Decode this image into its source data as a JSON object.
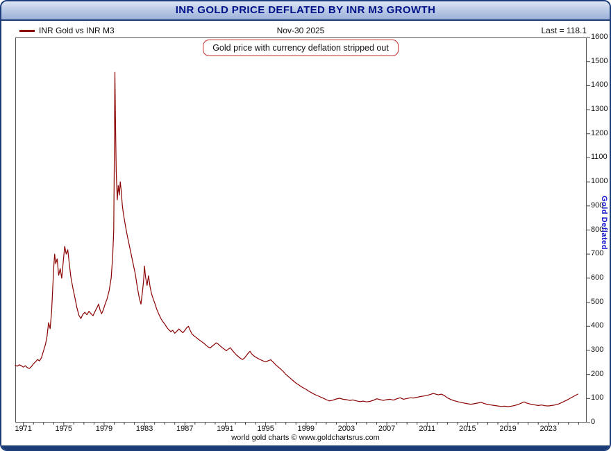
{
  "header": {
    "title": "INR GOLD PRICE DEFLATED BY INR M3 GROWTH",
    "date_label": "Nov-30 2025",
    "last_label": "Last = 118.1"
  },
  "annotation": {
    "text": "Gold price with currency deflation stripped out"
  },
  "footer": {
    "credit": "world gold charts © www.goldchartsrus.com"
  },
  "colors": {
    "line": "#8b0000",
    "title_text": "#001287",
    "ylabel_text": "#1515cc",
    "annotation_border": "#c42a2a",
    "frame": "#555555",
    "tick": "#444444"
  },
  "chart_data": {
    "type": "line",
    "title": "INR GOLD PRICE DEFLATED BY INR M3 GROWTH",
    "ylabel": "Gold Deflated",
    "xlabel": "",
    "grid": false,
    "legend_position": "top-left",
    "last_value": 118.1,
    "x_range": [
      1970.2,
      2026.8
    ],
    "y_range": [
      0,
      1600
    ],
    "y_tick_step": 100,
    "x_ticks": [
      1971,
      1975,
      1979,
      1983,
      1987,
      1991,
      1995,
      1999,
      2003,
      2007,
      2011,
      2015,
      2019,
      2023
    ],
    "series": [
      {
        "name": "INR Gold vs INR M3",
        "color": "#8b0000",
        "points": [
          [
            1970.2,
            238
          ],
          [
            1970.4,
            234
          ],
          [
            1970.6,
            240
          ],
          [
            1970.8,
            236
          ],
          [
            1971.0,
            230
          ],
          [
            1971.2,
            236
          ],
          [
            1971.4,
            228
          ],
          [
            1971.6,
            225
          ],
          [
            1971.8,
            233
          ],
          [
            1972.0,
            244
          ],
          [
            1972.2,
            252
          ],
          [
            1972.4,
            262
          ],
          [
            1972.6,
            256
          ],
          [
            1972.8,
            270
          ],
          [
            1973.0,
            298
          ],
          [
            1973.2,
            326
          ],
          [
            1973.35,
            360
          ],
          [
            1973.5,
            415
          ],
          [
            1973.65,
            390
          ],
          [
            1973.8,
            460
          ],
          [
            1974.0,
            640
          ],
          [
            1974.1,
            700
          ],
          [
            1974.2,
            660
          ],
          [
            1974.35,
            680
          ],
          [
            1974.5,
            612
          ],
          [
            1974.65,
            640
          ],
          [
            1974.8,
            600
          ],
          [
            1975.0,
            690
          ],
          [
            1975.1,
            732
          ],
          [
            1975.25,
            700
          ],
          [
            1975.4,
            718
          ],
          [
            1975.55,
            660
          ],
          [
            1975.7,
            606
          ],
          [
            1975.9,
            560
          ],
          [
            1976.1,
            520
          ],
          [
            1976.3,
            478
          ],
          [
            1976.5,
            446
          ],
          [
            1976.7,
            432
          ],
          [
            1976.9,
            450
          ],
          [
            1977.1,
            458
          ],
          [
            1977.3,
            448
          ],
          [
            1977.5,
            462
          ],
          [
            1977.7,
            452
          ],
          [
            1977.9,
            444
          ],
          [
            1978.1,
            462
          ],
          [
            1978.3,
            478
          ],
          [
            1978.45,
            492
          ],
          [
            1978.6,
            468
          ],
          [
            1978.75,
            452
          ],
          [
            1978.9,
            466
          ],
          [
            1979.1,
            492
          ],
          [
            1979.3,
            515
          ],
          [
            1979.5,
            548
          ],
          [
            1979.7,
            600
          ],
          [
            1979.85,
            690
          ],
          [
            1979.95,
            800
          ],
          [
            1980.02,
            1160
          ],
          [
            1980.07,
            1455
          ],
          [
            1980.12,
            1280
          ],
          [
            1980.2,
            1040
          ],
          [
            1980.3,
            925
          ],
          [
            1980.4,
            985
          ],
          [
            1980.5,
            945
          ],
          [
            1980.6,
            1000
          ],
          [
            1980.7,
            960
          ],
          [
            1980.8,
            905
          ],
          [
            1980.9,
            870
          ],
          [
            1981.1,
            820
          ],
          [
            1981.3,
            775
          ],
          [
            1981.5,
            735
          ],
          [
            1981.7,
            695
          ],
          [
            1981.9,
            655
          ],
          [
            1982.1,
            615
          ],
          [
            1982.3,
            560
          ],
          [
            1982.5,
            515
          ],
          [
            1982.65,
            492
          ],
          [
            1982.8,
            545
          ],
          [
            1982.9,
            585
          ],
          [
            1983.0,
            650
          ],
          [
            1983.1,
            605
          ],
          [
            1983.25,
            570
          ],
          [
            1983.4,
            610
          ],
          [
            1983.55,
            565
          ],
          [
            1983.7,
            535
          ],
          [
            1983.85,
            515
          ],
          [
            1984.0,
            498
          ],
          [
            1984.2,
            472
          ],
          [
            1984.4,
            452
          ],
          [
            1984.6,
            434
          ],
          [
            1984.8,
            420
          ],
          [
            1985.0,
            410
          ],
          [
            1985.2,
            396
          ],
          [
            1985.4,
            386
          ],
          [
            1985.6,
            378
          ],
          [
            1985.8,
            383
          ],
          [
            1986.0,
            371
          ],
          [
            1986.2,
            379
          ],
          [
            1986.4,
            389
          ],
          [
            1986.6,
            381
          ],
          [
            1986.8,
            373
          ],
          [
            1987.0,
            383
          ],
          [
            1987.2,
            395
          ],
          [
            1987.35,
            400
          ],
          [
            1987.5,
            385
          ],
          [
            1987.7,
            368
          ],
          [
            1987.9,
            360
          ],
          [
            1988.1,
            354
          ],
          [
            1988.3,
            347
          ],
          [
            1988.5,
            341
          ],
          [
            1988.7,
            335
          ],
          [
            1988.9,
            329
          ],
          [
            1989.1,
            321
          ],
          [
            1989.3,
            314
          ],
          [
            1989.5,
            310
          ],
          [
            1989.7,
            317
          ],
          [
            1989.9,
            324
          ],
          [
            1990.1,
            331
          ],
          [
            1990.3,
            326
          ],
          [
            1990.5,
            318
          ],
          [
            1990.7,
            311
          ],
          [
            1990.9,
            305
          ],
          [
            1991.1,
            298
          ],
          [
            1991.3,
            305
          ],
          [
            1991.5,
            311
          ],
          [
            1991.7,
            300
          ],
          [
            1991.9,
            290
          ],
          [
            1992.1,
            281
          ],
          [
            1992.3,
            274
          ],
          [
            1992.5,
            267
          ],
          [
            1992.7,
            262
          ],
          [
            1992.9,
            268
          ],
          [
            1993.1,
            279
          ],
          [
            1993.3,
            290
          ],
          [
            1993.45,
            296
          ],
          [
            1993.6,
            286
          ],
          [
            1993.8,
            278
          ],
          [
            1994.0,
            272
          ],
          [
            1994.25,
            266
          ],
          [
            1994.5,
            261
          ],
          [
            1994.75,
            256
          ],
          [
            1995.0,
            252
          ],
          [
            1995.25,
            257
          ],
          [
            1995.5,
            261
          ],
          [
            1995.75,
            251
          ],
          [
            1996.0,
            240
          ],
          [
            1996.25,
            231
          ],
          [
            1996.5,
            222
          ],
          [
            1996.75,
            212
          ],
          [
            1997.0,
            200
          ],
          [
            1997.25,
            191
          ],
          [
            1997.5,
            182
          ],
          [
            1997.75,
            173
          ],
          [
            1998.0,
            164
          ],
          [
            1998.25,
            157
          ],
          [
            1998.5,
            150
          ],
          [
            1998.75,
            144
          ],
          [
            1999.0,
            138
          ],
          [
            1999.25,
            131
          ],
          [
            1999.5,
            125
          ],
          [
            1999.75,
            119
          ],
          [
            2000.0,
            114
          ],
          [
            2000.33,
            108
          ],
          [
            2000.66,
            102
          ],
          [
            2001.0,
            95
          ],
          [
            2001.33,
            90
          ],
          [
            2001.66,
            93
          ],
          [
            2002.0,
            98
          ],
          [
            2002.33,
            101
          ],
          [
            2002.66,
            97
          ],
          [
            2003.0,
            95
          ],
          [
            2003.33,
            92
          ],
          [
            2003.66,
            94
          ],
          [
            2004.0,
            90
          ],
          [
            2004.33,
            87
          ],
          [
            2004.66,
            89
          ],
          [
            2005.0,
            86
          ],
          [
            2005.33,
            88
          ],
          [
            2005.66,
            92
          ],
          [
            2006.0,
            99
          ],
          [
            2006.33,
            95
          ],
          [
            2006.66,
            92
          ],
          [
            2007.0,
            95
          ],
          [
            2007.33,
            97
          ],
          [
            2007.66,
            93
          ],
          [
            2008.0,
            99
          ],
          [
            2008.33,
            103
          ],
          [
            2008.66,
            97
          ],
          [
            2009.0,
            100
          ],
          [
            2009.33,
            103
          ],
          [
            2009.66,
            102
          ],
          [
            2010.0,
            105
          ],
          [
            2010.33,
            108
          ],
          [
            2010.66,
            110
          ],
          [
            2011.0,
            113
          ],
          [
            2011.33,
            117
          ],
          [
            2011.6,
            121
          ],
          [
            2011.85,
            118
          ],
          [
            2012.1,
            115
          ],
          [
            2012.4,
            118
          ],
          [
            2012.7,
            112
          ],
          [
            2013.0,
            103
          ],
          [
            2013.33,
            96
          ],
          [
            2013.66,
            91
          ],
          [
            2014.0,
            87
          ],
          [
            2014.33,
            84
          ],
          [
            2014.66,
            81
          ],
          [
            2015.0,
            78
          ],
          [
            2015.33,
            76
          ],
          [
            2015.66,
            78
          ],
          [
            2016.0,
            81
          ],
          [
            2016.33,
            84
          ],
          [
            2016.66,
            79
          ],
          [
            2017.0,
            75
          ],
          [
            2017.33,
            73
          ],
          [
            2017.66,
            71
          ],
          [
            2018.0,
            69
          ],
          [
            2018.33,
            67
          ],
          [
            2018.66,
            68
          ],
          [
            2019.0,
            66
          ],
          [
            2019.33,
            68
          ],
          [
            2019.66,
            71
          ],
          [
            2020.0,
            75
          ],
          [
            2020.33,
            81
          ],
          [
            2020.6,
            86
          ],
          [
            2020.85,
            81
          ],
          [
            2021.1,
            78
          ],
          [
            2021.4,
            75
          ],
          [
            2021.7,
            73
          ],
          [
            2022.0,
            71
          ],
          [
            2022.33,
            73
          ],
          [
            2022.66,
            70
          ],
          [
            2023.0,
            69
          ],
          [
            2023.33,
            71
          ],
          [
            2023.66,
            73
          ],
          [
            2024.0,
            77
          ],
          [
            2024.33,
            83
          ],
          [
            2024.66,
            90
          ],
          [
            2025.0,
            97
          ],
          [
            2025.3,
            104
          ],
          [
            2025.6,
            111
          ],
          [
            2025.92,
            118.1
          ]
        ]
      }
    ]
  }
}
